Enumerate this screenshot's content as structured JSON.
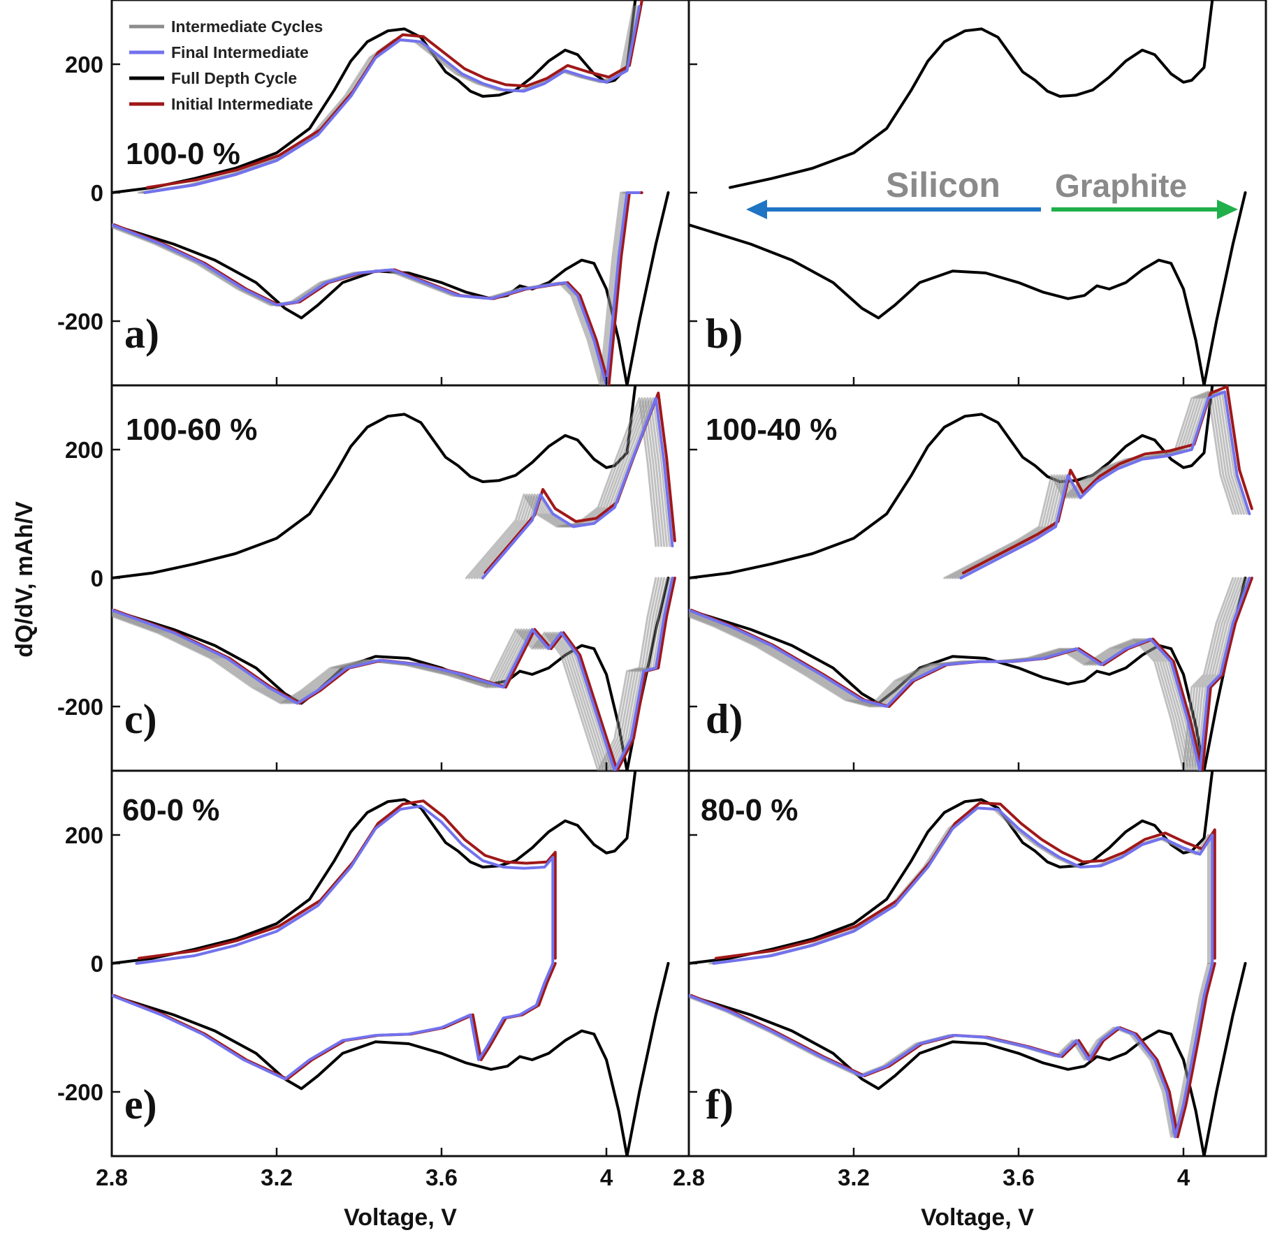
{
  "figure": {
    "y_axis_label": "dQ/dV, mAh/V",
    "x_axis_label": "Voltage, V",
    "x_ticks": [
      "2.8",
      "3.2",
      "3.6",
      "4"
    ],
    "y_ticks": [
      "200",
      "0",
      "-200"
    ],
    "colors": {
      "intermediate_cycles": "#8c8c8c",
      "final_intermediate": "#7272ee",
      "full_depth_cycle": "#000000",
      "initial_intermediate": "#a01818",
      "silicon_arrow": "#1f74c4",
      "graphite_arrow": "#1fb04a"
    }
  },
  "legend": [
    {
      "label": "Intermediate Cycles",
      "series": "intermediate_cycles"
    },
    {
      "label": "Final Intermediate",
      "series": "final_intermediate"
    },
    {
      "label": "Full Depth Cycle",
      "series": "full_depth_cycle"
    },
    {
      "label": "Initial Intermediate",
      "series": "initial_intermediate"
    }
  ],
  "annotations": {
    "silicon": "Silicon",
    "graphite": "Graphite"
  },
  "panels": [
    {
      "letter": "a)",
      "range_label": "100-0 %"
    },
    {
      "letter": "b)",
      "range_label": ""
    },
    {
      "letter": "c)",
      "range_label": "100-60 %"
    },
    {
      "letter": "d)",
      "range_label": "100-40 %"
    },
    {
      "letter": "e)",
      "range_label": "60-0 %"
    },
    {
      "letter": "f)",
      "range_label": "80-0 %"
    }
  ],
  "chart_data": {
    "type": "line",
    "xlabel": "Voltage, V",
    "ylabel": "dQ/dV, mAh/V",
    "xlim": [
      2.8,
      4.2
    ],
    "ylim": [
      -300,
      300
    ],
    "curves": {
      "full_charge": {
        "x": [
          2.8,
          2.9,
          3.0,
          3.1,
          3.2,
          3.28,
          3.34,
          3.38,
          3.42,
          3.47,
          3.51,
          3.55,
          3.58,
          3.61,
          3.64,
          3.67,
          3.7,
          3.74,
          3.78,
          3.82,
          3.86,
          3.9,
          3.93,
          3.97,
          4.0,
          4.02,
          4.05,
          4.07
        ],
        "y": [
          0,
          8,
          22,
          38,
          62,
          100,
          160,
          205,
          235,
          252,
          255,
          242,
          215,
          188,
          175,
          158,
          150,
          152,
          160,
          180,
          205,
          222,
          215,
          185,
          172,
          175,
          195,
          300
        ]
      },
      "full_discharge": {
        "x": [
          4.15,
          4.12,
          4.08,
          4.05,
          4.03,
          4.0,
          3.97,
          3.94,
          3.9,
          3.86,
          3.82,
          3.79,
          3.76,
          3.72,
          3.66,
          3.6,
          3.52,
          3.44,
          3.36,
          3.3,
          3.26,
          3.22,
          3.15,
          3.05,
          2.95,
          2.8
        ],
        "y": [
          0,
          -80,
          -200,
          -300,
          -230,
          -150,
          -110,
          -105,
          -120,
          -140,
          -150,
          -145,
          -160,
          -165,
          -155,
          -140,
          -125,
          -122,
          -140,
          -175,
          -195,
          -180,
          -140,
          -105,
          -80,
          -50
        ]
      },
      "panel_a": {
        "charge": {
          "x": [
            2.88,
            3.0,
            3.1,
            3.2,
            3.3,
            3.38,
            3.44,
            3.5,
            3.55,
            3.6,
            3.65,
            3.7,
            3.75,
            3.8,
            3.85,
            3.9,
            3.95,
            4.0,
            4.05,
            4.08
          ],
          "y": [
            0,
            12,
            28,
            50,
            90,
            150,
            210,
            238,
            235,
            210,
            185,
            170,
            160,
            158,
            170,
            190,
            180,
            172,
            190,
            290
          ]
        },
        "discharge": {
          "x": [
            4.08,
            4.05,
            4.03,
            4.0,
            3.97,
            3.93,
            3.9,
            3.85,
            3.8,
            3.72,
            3.64,
            3.56,
            3.48,
            3.4,
            3.32,
            3.25,
            3.2,
            3.12,
            3.02,
            2.92,
            2.8
          ],
          "y": [
            0,
            0,
            -100,
            -300,
            -230,
            -160,
            -140,
            -145,
            -150,
            -165,
            -160,
            -140,
            -120,
            -125,
            -140,
            -170,
            -175,
            -150,
            -110,
            -80,
            -50
          ]
        }
      },
      "panel_c": {
        "charge": {
          "x": [
            3.7,
            3.74,
            3.78,
            3.82,
            3.84,
            3.87,
            3.92,
            3.97,
            4.02,
            4.06,
            4.09,
            4.12,
            4.14,
            4.16
          ],
          "y": [
            0,
            30,
            60,
            90,
            130,
            100,
            80,
            85,
            110,
            180,
            230,
            280,
            180,
            50
          ]
        },
        "discharge": {
          "x": [
            4.16,
            4.14,
            4.12,
            4.09,
            4.06,
            4.02,
            3.97,
            3.93,
            3.89,
            3.86,
            3.82,
            3.75,
            3.65,
            3.55,
            3.45,
            3.37,
            3.3,
            3.25,
            3.18,
            3.08,
            2.95,
            2.8
          ],
          "y": [
            0,
            -60,
            -140,
            -145,
            -250,
            -300,
            -200,
            -120,
            -85,
            -110,
            -80,
            -170,
            -150,
            -135,
            -128,
            -140,
            -175,
            -195,
            -170,
            -125,
            -85,
            -50
          ]
        }
      },
      "panel_d": {
        "charge": {
          "x": [
            3.46,
            3.52,
            3.58,
            3.64,
            3.69,
            3.72,
            3.75,
            3.79,
            3.84,
            3.9,
            3.96,
            4.02,
            4.06,
            4.1,
            4.13,
            4.16
          ],
          "y": [
            0,
            20,
            40,
            60,
            80,
            160,
            125,
            150,
            170,
            185,
            190,
            200,
            280,
            290,
            160,
            100
          ]
        },
        "discharge": {
          "x": [
            4.16,
            4.12,
            4.09,
            4.06,
            4.04,
            4.01,
            3.97,
            3.92,
            3.86,
            3.8,
            3.74,
            3.66,
            3.58,
            3.5,
            3.42,
            3.34,
            3.28,
            3.22,
            3.12,
            3.0,
            2.9,
            2.8
          ],
          "y": [
            0,
            -70,
            -150,
            -170,
            -300,
            -220,
            -130,
            -95,
            -110,
            -135,
            -110,
            -125,
            -130,
            -130,
            -135,
            -160,
            -200,
            -190,
            -150,
            -105,
            -75,
            -50
          ]
        }
      },
      "panel_e": {
        "charge": {
          "x": [
            2.86,
            3.0,
            3.1,
            3.2,
            3.3,
            3.38,
            3.44,
            3.5,
            3.55,
            3.6,
            3.65,
            3.7,
            3.75,
            3.8,
            3.85,
            3.87,
            3.87
          ],
          "y": [
            0,
            12,
            28,
            50,
            90,
            150,
            210,
            240,
            245,
            220,
            185,
            160,
            150,
            148,
            150,
            165,
            0
          ]
        },
        "discharge": {
          "x": [
            3.87,
            3.85,
            3.83,
            3.79,
            3.75,
            3.71,
            3.69,
            3.67,
            3.6,
            3.52,
            3.44,
            3.36,
            3.28,
            3.22,
            3.12,
            3.02,
            2.92,
            2.8
          ],
          "y": [
            0,
            -30,
            -65,
            -80,
            -85,
            -130,
            -150,
            -80,
            -100,
            -110,
            -112,
            -120,
            -150,
            -180,
            -150,
            -110,
            -80,
            -50
          ]
        }
      },
      "panel_f": {
        "charge": {
          "x": [
            2.86,
            3.0,
            3.1,
            3.2,
            3.3,
            3.38,
            3.44,
            3.5,
            3.55,
            3.6,
            3.65,
            3.7,
            3.75,
            3.8,
            3.85,
            3.9,
            3.95,
            4.0,
            4.04,
            4.07,
            4.07
          ],
          "y": [
            0,
            12,
            28,
            50,
            90,
            150,
            210,
            242,
            240,
            210,
            185,
            165,
            150,
            152,
            165,
            185,
            195,
            180,
            170,
            200,
            0
          ]
        },
        "discharge": {
          "x": [
            4.07,
            4.05,
            4.03,
            4.0,
            3.98,
            3.96,
            3.93,
            3.88,
            3.84,
            3.8,
            3.77,
            3.74,
            3.7,
            3.62,
            3.52,
            3.44,
            3.36,
            3.28,
            3.22,
            3.12,
            3.0,
            2.9,
            2.8
          ],
          "y": [
            0,
            -50,
            -120,
            -220,
            -270,
            -200,
            -150,
            -110,
            -100,
            -120,
            -150,
            -120,
            -145,
            -130,
            -115,
            -112,
            -125,
            -160,
            -175,
            -145,
            -105,
            -75,
            -50
          ]
        }
      }
    }
  }
}
